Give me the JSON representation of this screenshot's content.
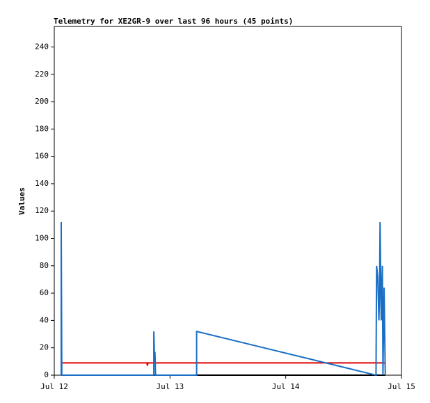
{
  "chart_data": {
    "type": "line",
    "title": "Telemetry for XE2GR-9 over last 96 hours (45 points)",
    "y_label": "Values",
    "xlim": [
      12,
      15
    ],
    "xticks": [
      {
        "value": 12,
        "label": "Jul 12"
      },
      {
        "value": 13,
        "label": "Jul 13"
      },
      {
        "value": 14,
        "label": "Jul 14"
      },
      {
        "value": 15,
        "label": "Jul 15"
      }
    ],
    "ylim": [
      0,
      255
    ],
    "yticks": [
      0,
      20,
      40,
      60,
      80,
      100,
      120,
      140,
      160,
      180,
      200,
      220,
      240
    ],
    "grid": false,
    "series": [
      {
        "color": "#000000",
        "x": [
          12.06,
          14.86
        ],
        "values": [
          0,
          0
        ]
      },
      {
        "color": "#e00000",
        "x": [
          12.06,
          12.8,
          12.805,
          12.81,
          14.86
        ],
        "values": [
          9,
          9,
          7,
          9,
          9
        ]
      },
      {
        "color": "#1a6fc4",
        "x": [
          12.06,
          12.06,
          12.065,
          12.86,
          12.86,
          12.865,
          12.87,
          12.875,
          13.23,
          13.23,
          14.78,
          14.785,
          14.795,
          14.805,
          14.81,
          14.815,
          14.825,
          14.835,
          14.84,
          14.85,
          14.86
        ],
        "values": [
          0,
          112,
          0,
          0,
          32,
          16,
          17,
          0,
          0,
          32,
          0,
          80,
          72,
          40,
          56,
          112,
          40,
          80,
          0,
          64,
          0
        ]
      }
    ]
  }
}
